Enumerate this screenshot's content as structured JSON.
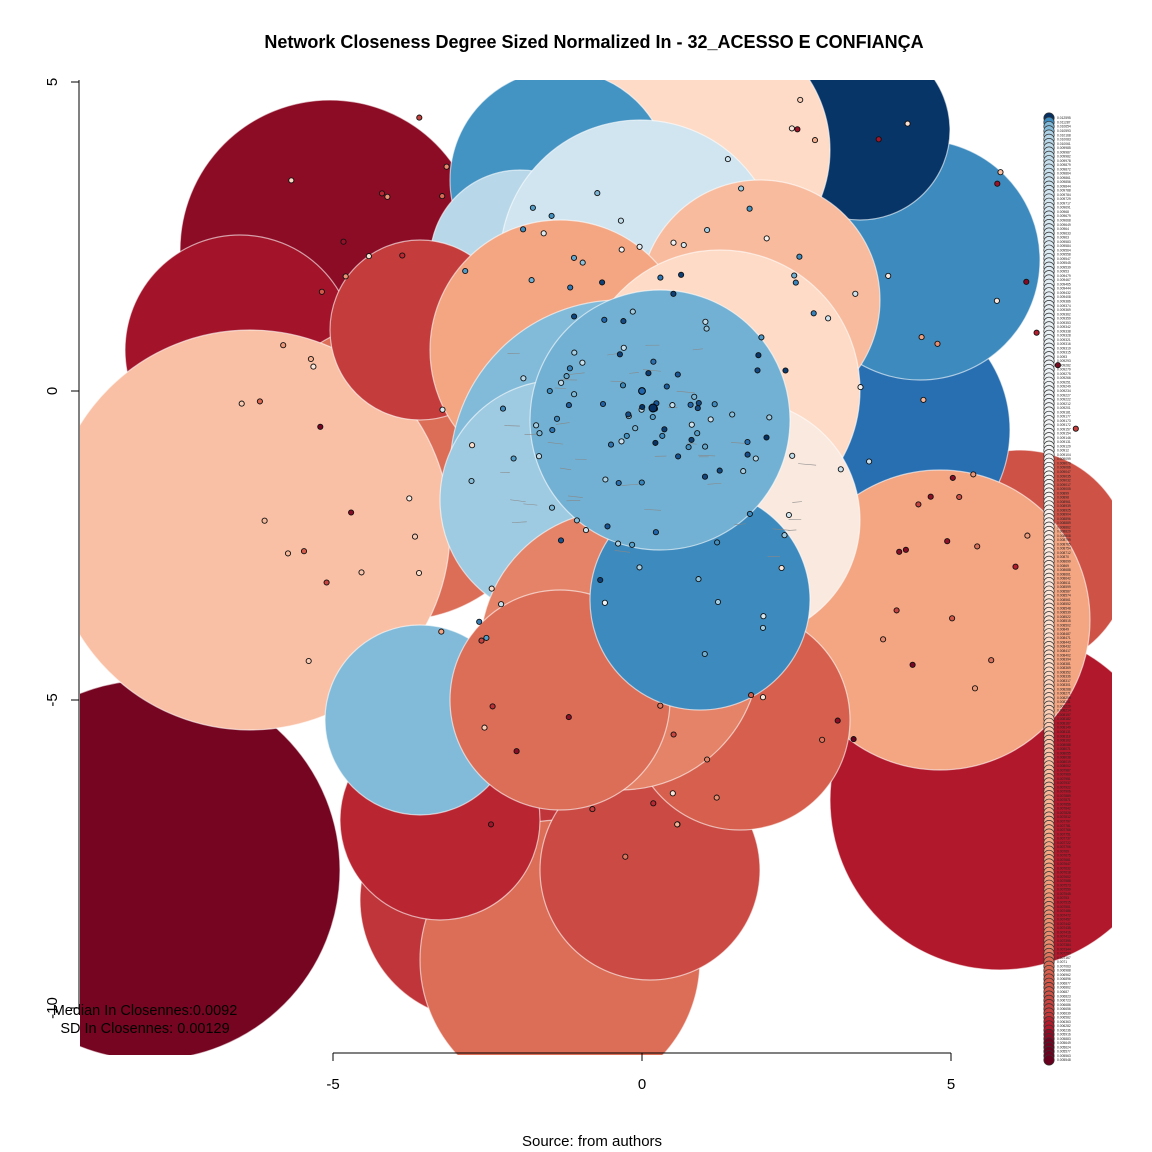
{
  "chart_data": {
    "type": "network",
    "title": "Network Closeness Degree Sized Normalized In - 32_ACESSO E CONFIANÇA",
    "source_label": "Source: from authors",
    "stats": {
      "median_text": "Median In Closennes:0.0092",
      "sd_text": "SD In Closennes: 0.00129"
    },
    "x_axis": {
      "range": [
        -5,
        5
      ],
      "ticks": [
        "-5",
        "0",
        "5"
      ]
    },
    "y_axis": {
      "range": [
        -10,
        5
      ],
      "ticks": [
        "5",
        "0",
        "-5",
        "-10"
      ]
    },
    "color_scale": {
      "palette": "RdBu",
      "low_color": "#67001f",
      "mid_color": "#f7f7f7",
      "high_color": "#053061",
      "min_value": 0.005548,
      "max_value": 0.012595
    },
    "legend_values": [
      "0.012595",
      "0.011287",
      "0.010654",
      "0.010593",
      "0.010168",
      "0.010083",
      "0.010061",
      "0.009985",
      "0.009987",
      "0.009982",
      "0.009978",
      "0.009879",
      "0.009872",
      "0.009864",
      "0.009861",
      "0.009856",
      "0.009844",
      "0.009788",
      "0.009784",
      "0.009729",
      "0.009717",
      "0.009691",
      "0.00968",
      "0.009679",
      "0.009668",
      "0.009649",
      "0.00964",
      "0.009633",
      "0.00963",
      "0.009583",
      "0.009584",
      "0.009564",
      "0.009558",
      "0.009547",
      "0.009545",
      "0.009539",
      "0.00953",
      "0.009479",
      "0.009467",
      "0.009465",
      "0.009444",
      "0.009432",
      "0.009408",
      "0.009386",
      "0.009374",
      "0.009369",
      "0.009362",
      "0.009359",
      "0.009353",
      "0.009342",
      "0.009338",
      "0.009328",
      "0.009321",
      "0.009316",
      "0.009319",
      "0.009315",
      "0.0093",
      "0.009293",
      "0.009282",
      "0.009279",
      "0.009275",
      "0.009266",
      "0.009251",
      "0.009249",
      "0.009234",
      "0.009227",
      "0.009222",
      "0.009212",
      "0.009201",
      "0.009181",
      "0.009177",
      "0.009173",
      "0.009172",
      "0.009157",
      "0.009154",
      "0.009146",
      "0.009131",
      "0.009129",
      "0.00912",
      "0.009104",
      "0.009099",
      "0.009079",
      "0.009066",
      "0.009047",
      "0.009035",
      "0.009032",
      "0.009017",
      "0.009005",
      "0.00899",
      "0.00898",
      "0.008961",
      "0.008939",
      "0.008925",
      "0.008904",
      "0.008896",
      "0.008889",
      "0.008862",
      "0.008829",
      "0.008808",
      "0.008799",
      "0.008765",
      "0.008754",
      "0.008712",
      "0.00870",
      "0.008699",
      "0.00869",
      "0.008688",
      "0.008661",
      "0.008642",
      "0.008611",
      "0.008599",
      "0.008587",
      "0.008574",
      "0.008561",
      "0.008552",
      "0.008548",
      "0.008539",
      "0.008522",
      "0.008515",
      "0.008502",
      "0.00849",
      "0.008487",
      "0.008471",
      "0.008443",
      "0.008432",
      "0.008417",
      "0.008402",
      "0.008394",
      "0.008381",
      "0.008369",
      "0.008352",
      "0.008336",
      "0.008317",
      "0.008301",
      "0.008288",
      "0.008271",
      "0.008259",
      "0.008241",
      "0.008229",
      "0.008214",
      "0.008197",
      "0.008182",
      "0.008167",
      "0.008149",
      "0.008131",
      "0.008118",
      "0.008102",
      "0.008088",
      "0.008071",
      "0.008055",
      "0.008038",
      "0.008019",
      "0.008002",
      "0.007987",
      "0.007969",
      "0.007951",
      "0.007937",
      "0.007922",
      "0.007906",
      "0.007889",
      "0.007871",
      "0.007856",
      "0.007842",
      "0.007828",
      "0.007812",
      "0.007797",
      "0.007781",
      "0.007766",
      "0.007751",
      "0.007737",
      "0.007722",
      "0.007706",
      "0.00769",
      "0.007675",
      "0.007661",
      "0.007647",
      "0.007632",
      "0.007618",
      "0.007602",
      "0.007588",
      "0.007573",
      "0.007559",
      "0.007545",
      "0.00753",
      "0.007515",
      "0.007501",
      "0.007486",
      "0.007472",
      "0.007457",
      "0.007442",
      "0.007435",
      "0.007416",
      "0.007413",
      "0.007395",
      "0.007384",
      "0.007344",
      "0.007293",
      "0.007167",
      "0.0071",
      "0.007063",
      "0.006988",
      "0.006962",
      "0.006896",
      "0.006877",
      "0.006862",
      "0.00687",
      "0.006823",
      "0.006723",
      "0.006686",
      "0.006656",
      "0.006639",
      "0.006582",
      "0.006363",
      "0.006282",
      "0.006236",
      "0.005916",
      "0.005883",
      "0.005649",
      "0.005624",
      "0.005577",
      "0.005563",
      "0.005548"
    ]
  }
}
